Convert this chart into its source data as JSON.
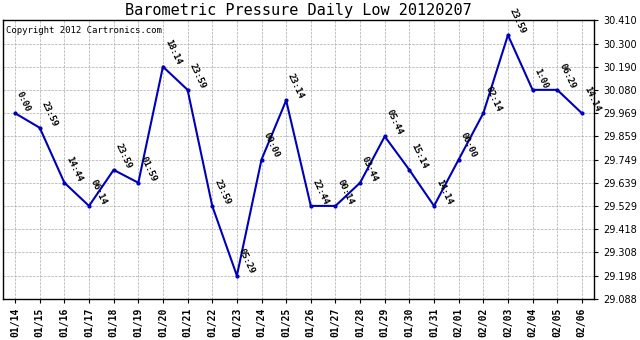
{
  "title": "Barometric Pressure Daily Low 20120207",
  "copyright": "Copyright 2012 Cartronics.com",
  "x_labels": [
    "01/14",
    "01/15",
    "01/16",
    "01/17",
    "01/18",
    "01/19",
    "01/20",
    "01/21",
    "01/22",
    "01/23",
    "01/24",
    "01/25",
    "01/26",
    "01/27",
    "01/28",
    "01/29",
    "01/30",
    "01/31",
    "02/01",
    "02/02",
    "02/03",
    "02/04",
    "02/05",
    "02/06"
  ],
  "y_values": [
    29.969,
    29.9,
    29.639,
    29.529,
    29.7,
    29.639,
    30.19,
    30.08,
    29.529,
    29.198,
    29.749,
    30.03,
    29.529,
    29.529,
    29.639,
    29.859,
    29.7,
    29.529,
    29.749,
    29.969,
    30.34,
    30.08,
    30.08,
    29.969
  ],
  "point_labels": [
    "0:00",
    "23:59",
    "14:44",
    "06:14",
    "23:59",
    "01:59",
    "18:14",
    "23:59",
    "23:59",
    "05:29",
    "00:00",
    "23:14",
    "22:44",
    "00:14",
    "03:44",
    "05:44",
    "15:14",
    "14:14",
    "00:00",
    "02:14",
    "23:59",
    "1:00",
    "06:29",
    "14:14"
  ],
  "line_color": "#0000bb",
  "marker_color": "#0000bb",
  "background_color": "#ffffff",
  "grid_color": "#aaaaaa",
  "ylim_min": 29.088,
  "ylim_max": 30.41,
  "yticks": [
    29.088,
    29.198,
    29.308,
    29.418,
    29.529,
    29.639,
    29.749,
    29.859,
    29.969,
    30.08,
    30.19,
    30.3,
    30.41
  ],
  "title_fontsize": 11,
  "label_fontsize": 6.5,
  "tick_fontsize": 7,
  "copyright_fontsize": 6.5
}
